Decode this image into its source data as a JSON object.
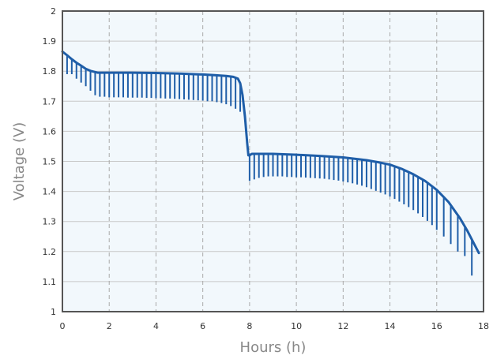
{
  "chart_data": {
    "type": "line",
    "title": "",
    "xlabel": "Hours (h)",
    "ylabel": "Voltage (V)",
    "xlim": [
      0,
      18
    ],
    "ylim": [
      1,
      2
    ],
    "x_ticks": [
      0,
      2,
      4,
      6,
      8,
      10,
      12,
      14,
      16,
      18
    ],
    "y_ticks": [
      1,
      1.1,
      1.2,
      1.3,
      1.4,
      1.5,
      1.6,
      1.7,
      1.8,
      1.9,
      2
    ],
    "x_tick_labels": [
      "0",
      "2",
      "4",
      "6",
      "8",
      "10",
      "12",
      "14",
      "16",
      "18"
    ],
    "y_tick_labels": [
      "1",
      "1.1",
      "1.2",
      "1.3",
      "1.4",
      "1.5",
      "1.6",
      "1.7",
      "1.8",
      "1.9",
      "2"
    ],
    "grid": {
      "vertical": "dashed",
      "horizontal": "solid"
    },
    "colors": {
      "line": "#1f5ea8",
      "plot_bg": "#f2f8fc",
      "frame": "#555555",
      "grid_h": "#c8c8c8",
      "grid_v": "#aaaaaa"
    },
    "series": [
      {
        "values_x": [
          0,
          0.2,
          0.4,
          0.6,
          0.8,
          1.0,
          1.2,
          1.5,
          2.0,
          3.0,
          4.0,
          5.0,
          6.0,
          6.5,
          7.0,
          7.3,
          7.5,
          7.6,
          7.7,
          7.8,
          7.9,
          7.95,
          8.0,
          8.1,
          8.5,
          9.0,
          10.0,
          11.0,
          12.0,
          13.0,
          13.5,
          14.0,
          14.5,
          15.0,
          15.5,
          16.0,
          16.5,
          17.0,
          17.3,
          17.6,
          17.8
        ],
        "values_y": [
          1.865,
          1.853,
          1.84,
          1.828,
          1.818,
          1.808,
          1.801,
          1.795,
          1.795,
          1.795,
          1.794,
          1.792,
          1.789,
          1.787,
          1.784,
          1.781,
          1.775,
          1.76,
          1.72,
          1.65,
          1.56,
          1.52,
          1.52,
          1.525,
          1.525,
          1.525,
          1.522,
          1.518,
          1.513,
          1.504,
          1.497,
          1.489,
          1.475,
          1.457,
          1.435,
          1.405,
          1.365,
          1.31,
          1.27,
          1.225,
          1.195
        ]
      }
    ],
    "pulses": {
      "x": [
        0.2,
        0.4,
        0.6,
        0.8,
        1.0,
        1.2,
        1.4,
        1.6,
        1.8,
        2.0,
        2.2,
        2.4,
        2.6,
        2.8,
        3.0,
        3.2,
        3.4,
        3.6,
        3.8,
        4.0,
        4.2,
        4.4,
        4.6,
        4.8,
        5.0,
        5.2,
        5.4,
        5.6,
        5.8,
        6.0,
        6.2,
        6.4,
        6.6,
        6.8,
        7.0,
        7.2,
        7.4,
        7.6,
        8.0,
        8.2,
        8.4,
        8.6,
        8.8,
        9.0,
        9.2,
        9.4,
        9.6,
        9.8,
        10.0,
        10.2,
        10.4,
        10.6,
        10.8,
        11.0,
        11.2,
        11.4,
        11.6,
        11.8,
        12.0,
        12.2,
        12.4,
        12.6,
        12.8,
        13.0,
        13.2,
        13.4,
        13.6,
        13.8,
        14.0,
        14.2,
        14.4,
        14.6,
        14.8,
        15.0,
        15.2,
        15.4,
        15.6,
        15.8,
        16.0,
        16.3,
        16.6,
        16.9,
        17.2,
        17.5
      ],
      "bottom": [
        1.79,
        1.79,
        1.775,
        1.762,
        1.75,
        1.735,
        1.72,
        1.715,
        1.715,
        1.713,
        1.713,
        1.713,
        1.713,
        1.712,
        1.712,
        1.712,
        1.712,
        1.711,
        1.711,
        1.71,
        1.71,
        1.709,
        1.709,
        1.708,
        1.707,
        1.706,
        1.705,
        1.704,
        1.703,
        1.702,
        1.7,
        1.7,
        1.697,
        1.694,
        1.69,
        1.684,
        1.675,
        1.665,
        1.435,
        1.44,
        1.445,
        1.448,
        1.45,
        1.45,
        1.45,
        1.45,
        1.448,
        1.448,
        1.447,
        1.447,
        1.446,
        1.445,
        1.444,
        1.443,
        1.442,
        1.44,
        1.438,
        1.436,
        1.433,
        1.43,
        1.427,
        1.423,
        1.419,
        1.414,
        1.408,
        1.402,
        1.396,
        1.39,
        1.383,
        1.375,
        1.366,
        1.357,
        1.348,
        1.338,
        1.327,
        1.315,
        1.302,
        1.288,
        1.272,
        1.25,
        1.225,
        1.2,
        1.185,
        1.12
      ]
    }
  }
}
